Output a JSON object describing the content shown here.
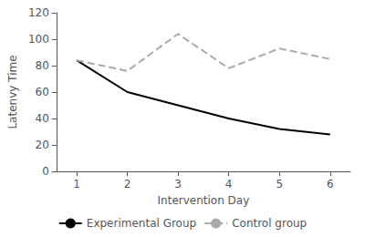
{
  "chart_data": {
    "type": "line",
    "x": [
      1,
      2,
      3,
      4,
      5,
      6
    ],
    "series": [
      {
        "name": "Experimental Group",
        "color": "#000000",
        "line_style": "solid",
        "values": [
          84,
          60,
          50,
          40,
          32,
          28
        ]
      },
      {
        "name": "Control group",
        "color": "#aaaaaa",
        "line_style": "dashed",
        "values": [
          84,
          76,
          104,
          78,
          93,
          85
        ]
      }
    ],
    "xlabel": "Intervention Day",
    "ylabel": "Latenvy Time",
    "xlim": [
      0.6,
      6.4
    ],
    "xticks": [
      1,
      2,
      3,
      4,
      5,
      6
    ],
    "ylim": [
      0,
      120
    ],
    "yticks": [
      0,
      20,
      40,
      60,
      80,
      100,
      120
    ],
    "grid": false,
    "legend": "bottom"
  }
}
